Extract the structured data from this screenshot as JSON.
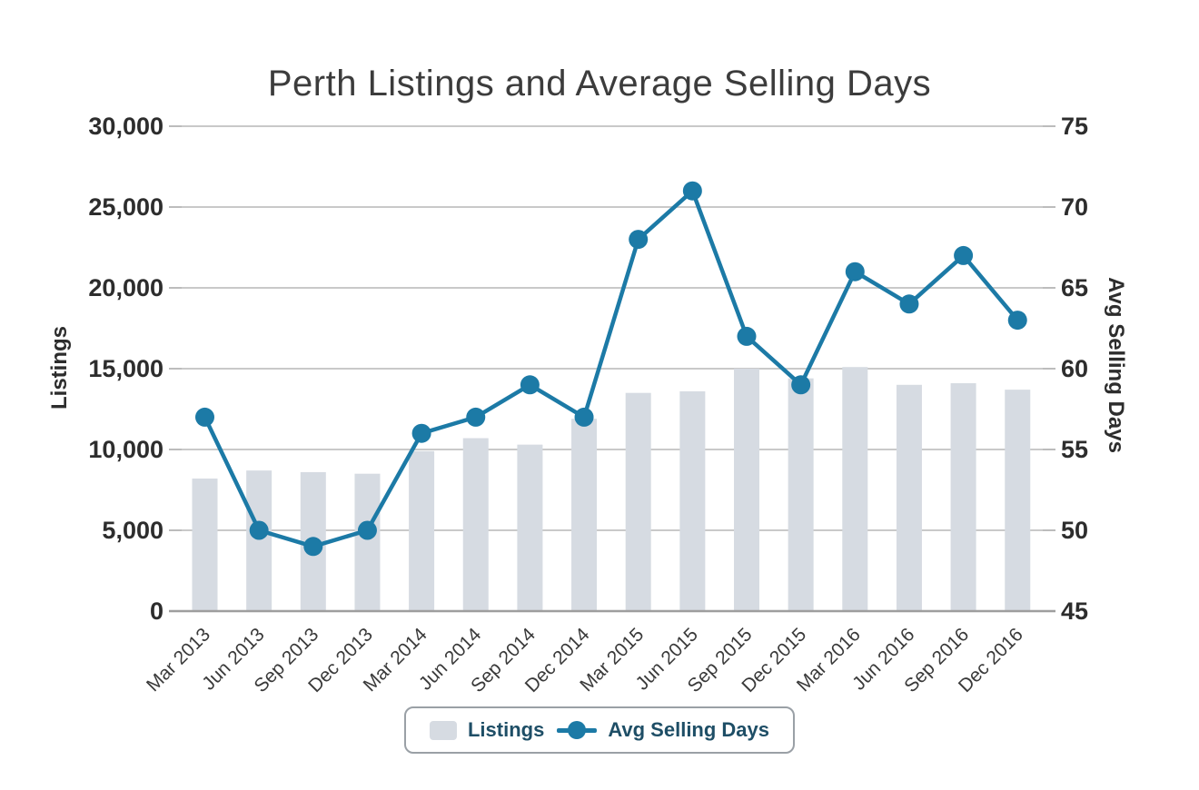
{
  "title": "Perth Listings and Average Selling Days",
  "chart_data": {
    "type": "bar",
    "subtype": "bar-line-combo",
    "title": "Perth Listings and Average Selling Days",
    "categories": [
      "Mar 2013",
      "Jun 2013",
      "Sep 2013",
      "Dec 2013",
      "Mar 2014",
      "Jun 2014",
      "Sep 2014",
      "Dec 2014",
      "Mar 2015",
      "Jun 2015",
      "Sep 2015",
      "Dec 2015",
      "Mar 2016",
      "Jun 2016",
      "Sep 2016",
      "Dec 2016"
    ],
    "series": [
      {
        "name": "Listings",
        "type": "bar",
        "axis": "left",
        "values": [
          8200,
          8700,
          8600,
          8500,
          9900,
          10700,
          10300,
          11900,
          13500,
          13600,
          15000,
          14400,
          15100,
          14000,
          14100,
          13700
        ]
      },
      {
        "name": "Avg Selling Days",
        "type": "line",
        "axis": "right",
        "values": [
          57,
          50,
          49,
          50,
          56,
          57,
          59,
          57,
          68,
          71,
          62,
          59,
          66,
          64,
          67,
          63
        ]
      }
    ],
    "left_axis": {
      "title": "Listings",
      "min": 0,
      "max": 30000,
      "step": 5000,
      "ticks": [
        "0",
        "5,000",
        "10,000",
        "15,000",
        "20,000",
        "25,000",
        "30,000"
      ]
    },
    "right_axis": {
      "title": "Avg Selling Days",
      "min": 45,
      "max": 75,
      "step": 5,
      "ticks": [
        "45",
        "50",
        "55",
        "60",
        "65",
        "70",
        "75"
      ]
    },
    "grid": true,
    "legend_position": "bottom"
  },
  "legend": {
    "items": [
      {
        "label": "Listings",
        "marker": "bar-swatch"
      },
      {
        "label": "Avg Selling Days",
        "marker": "line-dot"
      }
    ]
  },
  "colors": {
    "bar": "#d6dbe2",
    "line": "#1c7aa6",
    "legend_text": "#1e4e66",
    "legend_border": "#9aa0a6",
    "grid": "#c9c9c9",
    "tick_mark": "#bcbcbc",
    "axis_line": "#9e9e9e",
    "tick_text": "#2d2d2d",
    "x_label_text": "#3a3a3a",
    "title_text": "#3c3c3c"
  }
}
